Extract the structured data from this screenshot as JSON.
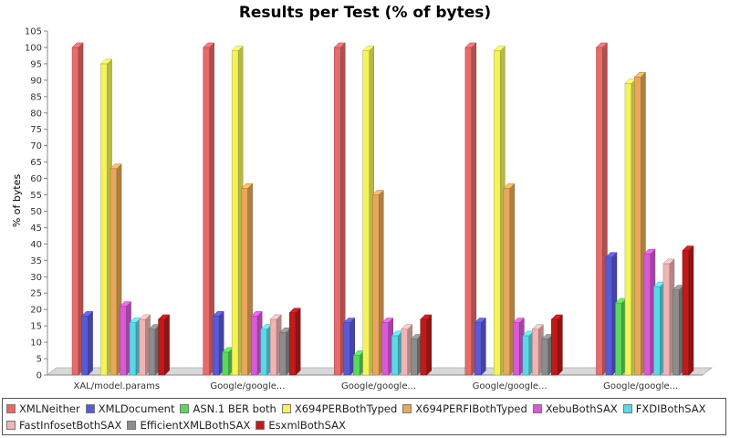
{
  "chart_data": {
    "type": "bar",
    "title": "Results per Test (% of bytes)",
    "xlabel": "",
    "ylabel": "% of bytes",
    "ylim": [
      0,
      105
    ],
    "yticks": [
      0,
      5,
      10,
      15,
      20,
      25,
      30,
      35,
      40,
      45,
      50,
      55,
      60,
      65,
      70,
      75,
      80,
      85,
      90,
      95,
      100,
      105
    ],
    "grid": false,
    "legend_position": "bottom",
    "style": "3d",
    "categories": [
      "XAL/model.params",
      "Google/google...",
      "Google/google...",
      "Google/google...",
      "Google/google..."
    ],
    "series": [
      {
        "name": "XMLNeither",
        "color": "#e86a6a",
        "values": [
          100,
          100,
          100,
          100,
          100
        ]
      },
      {
        "name": "XMLDocument",
        "color": "#5a5ad8",
        "values": [
          18,
          18,
          16,
          16,
          36
        ]
      },
      {
        "name": "ASN.1 BER both",
        "color": "#5ad85a",
        "values": [
          0,
          7,
          6,
          0,
          22
        ]
      },
      {
        "name": "X694PERBothTyped",
        "color": "#f4f45a",
        "values": [
          95,
          99,
          99,
          99,
          89
        ]
      },
      {
        "name": "X694PERFIBothTyped",
        "color": "#e8a85a",
        "values": [
          63,
          57,
          55,
          57,
          91
        ]
      },
      {
        "name": "XebuBothSAX",
        "color": "#d85ad8",
        "values": [
          21,
          18,
          16,
          16,
          37
        ]
      },
      {
        "name": "FXDIBothSAX",
        "color": "#5ad8e8",
        "values": [
          16,
          14,
          12,
          12,
          27
        ]
      },
      {
        "name": "FastInfosetBothSAX",
        "color": "#f0b4b4",
        "values": [
          17,
          17,
          14,
          14,
          34
        ]
      },
      {
        "name": "EfficientXMLBothSAX",
        "color": "#8c8c8c",
        "values": [
          14,
          13,
          11,
          11,
          26
        ]
      },
      {
        "name": "EsxmlBothSAX",
        "color": "#c01a1a",
        "values": [
          17,
          19,
          17,
          17,
          38
        ]
      }
    ]
  }
}
